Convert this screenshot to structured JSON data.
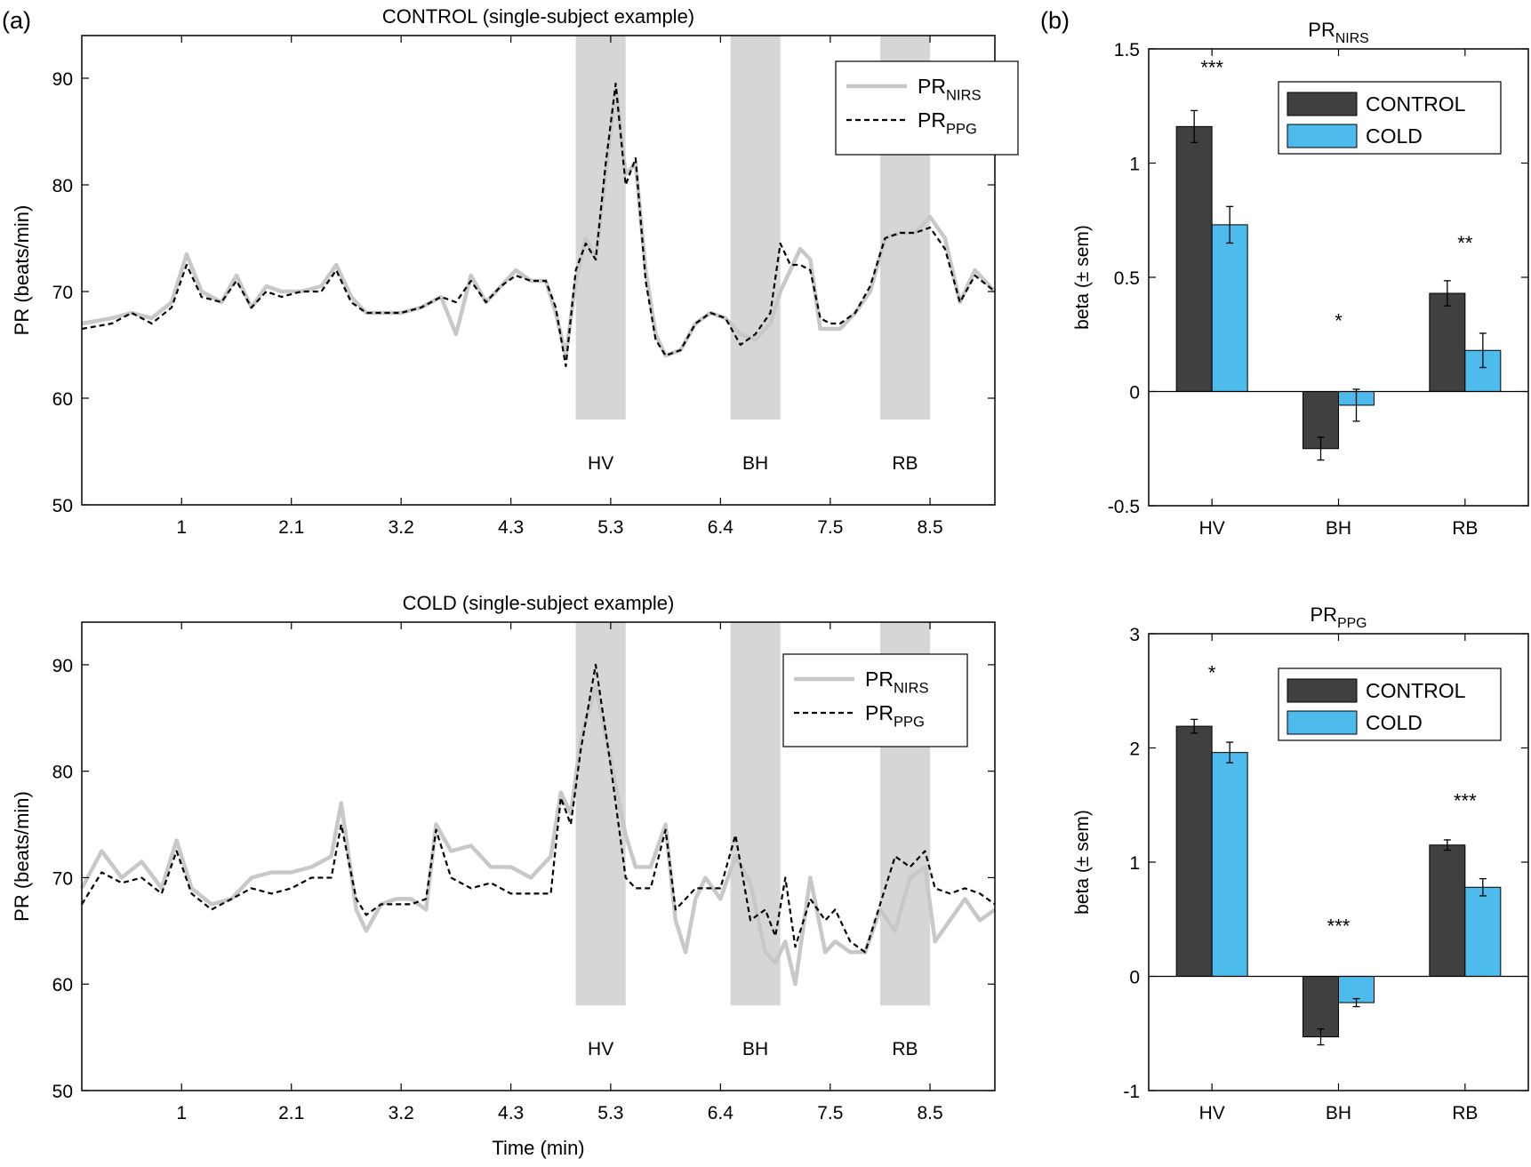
{
  "panel_labels": {
    "a": "(a)",
    "b": "(b)"
  },
  "colors": {
    "band": "#d6d6d6",
    "nirs": "#c8c8c8",
    "ppg": "#000000",
    "control_bar": "#404040",
    "cold_bar": "#4dbbeb"
  },
  "chart_data": [
    {
      "type": "line",
      "id": "control_ts",
      "title": "CONTROL (single-subject example)",
      "xlabel": "",
      "ylabel": "PR (beats/min)",
      "xlim": [
        0,
        9.15
      ],
      "ylim": [
        50,
        94
      ],
      "xticks": [
        1,
        2.1,
        3.2,
        4.3,
        5.3,
        6.4,
        7.5,
        8.5
      ],
      "xtick_labels": [
        "1",
        "2.1",
        "3.2",
        "4.3",
        "5.3",
        "6.4",
        "7.5",
        "8.5"
      ],
      "yticks": [
        50,
        60,
        70,
        80,
        90
      ],
      "ytick_labels": [
        "50",
        "60",
        "70",
        "80",
        "90"
      ],
      "bands": [
        {
          "label": "HV",
          "x": [
            4.95,
            5.45
          ]
        },
        {
          "label": "BH",
          "x": [
            6.5,
            7.0
          ]
        },
        {
          "label": "RB",
          "x": [
            8.0,
            8.5
          ]
        }
      ],
      "band_y": [
        58,
        94
      ],
      "band_label_y": 54,
      "legend_position": "top-right",
      "series": [
        {
          "name": "PR_NIRS",
          "name_main": "PR",
          "name_sub": "NIRS",
          "style": "solid",
          "x": [
            0,
            0.3,
            0.5,
            0.7,
            0.9,
            1.05,
            1.2,
            1.4,
            1.55,
            1.7,
            1.85,
            2.0,
            2.2,
            2.4,
            2.55,
            2.7,
            2.85,
            3.0,
            3.2,
            3.4,
            3.6,
            3.75,
            3.9,
            4.05,
            4.2,
            4.35,
            4.5,
            4.65,
            4.75,
            4.85,
            4.95,
            5.05,
            5.15,
            5.25,
            5.35,
            5.45,
            5.55,
            5.65,
            5.75,
            5.85,
            6.0,
            6.15,
            6.3,
            6.45,
            6.6,
            6.75,
            6.9,
            7.0,
            7.1,
            7.2,
            7.3,
            7.4,
            7.5,
            7.6,
            7.75,
            7.9,
            8.05,
            8.2,
            8.35,
            8.5,
            8.65,
            8.8,
            8.95,
            9.15
          ],
          "y": [
            67,
            67.5,
            68,
            67.5,
            69,
            73.5,
            70,
            69,
            71.5,
            68.5,
            70.5,
            70,
            70,
            70.5,
            72.5,
            69.5,
            68,
            68,
            68,
            68.5,
            69.5,
            66,
            71.5,
            69,
            70.5,
            72,
            71,
            71,
            68,
            64,
            71,
            75,
            73,
            81,
            89,
            81,
            82,
            72,
            66,
            64,
            64.5,
            67,
            68,
            67.5,
            66,
            65.5,
            67,
            70,
            72,
            74,
            73,
            66.5,
            66.5,
            66.5,
            68,
            70,
            75,
            75.5,
            75.5,
            77,
            75,
            69,
            72,
            70
          ]
        },
        {
          "name": "PR_PPG",
          "name_main": "PR",
          "name_sub": "PPG",
          "style": "dashed",
          "x": [
            0,
            0.3,
            0.5,
            0.7,
            0.9,
            1.05,
            1.2,
            1.4,
            1.55,
            1.7,
            1.85,
            2.0,
            2.2,
            2.4,
            2.55,
            2.7,
            2.85,
            3.0,
            3.2,
            3.4,
            3.6,
            3.75,
            3.9,
            4.05,
            4.2,
            4.35,
            4.5,
            4.65,
            4.75,
            4.85,
            4.95,
            5.05,
            5.15,
            5.25,
            5.35,
            5.45,
            5.55,
            5.65,
            5.75,
            5.85,
            6.0,
            6.15,
            6.3,
            6.45,
            6.6,
            6.75,
            6.9,
            7.0,
            7.1,
            7.2,
            7.3,
            7.4,
            7.5,
            7.6,
            7.75,
            7.9,
            8.05,
            8.2,
            8.35,
            8.5,
            8.65,
            8.8,
            8.95,
            9.15
          ],
          "y": [
            66.5,
            67,
            68,
            67,
            68.5,
            72.5,
            69.5,
            69,
            71,
            68.5,
            70,
            69.5,
            70,
            70,
            72,
            69,
            68,
            68,
            68,
            68.5,
            69.5,
            69,
            71,
            69,
            70.5,
            71.5,
            71,
            71,
            68.5,
            63,
            72,
            74.5,
            73,
            82,
            89.5,
            80,
            82.5,
            71,
            65.5,
            64,
            64.5,
            67,
            68,
            67.5,
            65,
            66,
            68,
            74.5,
            72.5,
            72.5,
            72,
            67.5,
            67,
            67,
            68,
            70.5,
            75,
            75.5,
            75.5,
            76,
            74,
            69,
            71.5,
            70
          ]
        }
      ]
    },
    {
      "type": "line",
      "id": "cold_ts",
      "title": "COLD (single-subject example)",
      "xlabel": "Time (min)",
      "ylabel": "PR (beats/min)",
      "xlim": [
        0,
        9.15
      ],
      "ylim": [
        50,
        94
      ],
      "xticks": [
        1,
        2.1,
        3.2,
        4.3,
        5.3,
        6.4,
        7.5,
        8.5
      ],
      "xtick_labels": [
        "1",
        "2.1",
        "3.2",
        "4.3",
        "5.3",
        "6.4",
        "7.5",
        "8.5"
      ],
      "yticks": [
        50,
        60,
        70,
        80,
        90
      ],
      "ytick_labels": [
        "50",
        "60",
        "70",
        "80",
        "90"
      ],
      "bands": [
        {
          "label": "HV",
          "x": [
            4.95,
            5.45
          ]
        },
        {
          "label": "BH",
          "x": [
            6.5,
            7.0
          ]
        },
        {
          "label": "RB",
          "x": [
            8.0,
            8.5
          ]
        }
      ],
      "band_y": [
        58,
        94
      ],
      "band_label_y": 54,
      "legend_position": "top-right",
      "series": [
        {
          "name": "PR_NIRS",
          "name_main": "PR",
          "name_sub": "NIRS",
          "style": "solid",
          "x": [
            0,
            0.2,
            0.4,
            0.6,
            0.8,
            0.95,
            1.1,
            1.3,
            1.5,
            1.7,
            1.9,
            2.1,
            2.3,
            2.5,
            2.6,
            2.75,
            2.85,
            3.0,
            3.15,
            3.3,
            3.45,
            3.55,
            3.7,
            3.9,
            4.1,
            4.3,
            4.5,
            4.7,
            4.8,
            4.9,
            5.0,
            5.15,
            5.3,
            5.45,
            5.55,
            5.7,
            5.85,
            5.95,
            6.05,
            6.15,
            6.25,
            6.4,
            6.55,
            6.7,
            6.85,
            6.95,
            7.05,
            7.15,
            7.3,
            7.45,
            7.55,
            7.7,
            7.85,
            8.0,
            8.15,
            8.3,
            8.45,
            8.55,
            8.7,
            8.85,
            9.0,
            9.15
          ],
          "y": [
            69,
            72.5,
            70,
            71.5,
            69,
            73.5,
            69,
            67.5,
            68,
            70,
            70.5,
            70.5,
            71,
            72,
            77,
            67,
            65,
            67.5,
            68,
            68,
            67,
            75,
            72.5,
            73,
            71,
            71,
            70,
            72,
            78,
            76,
            83,
            88,
            81,
            74,
            71,
            71,
            75,
            66,
            63,
            68,
            70,
            68,
            72,
            69.5,
            63,
            62,
            64,
            60,
            70,
            63,
            64,
            63,
            63,
            67,
            65,
            70,
            71,
            64,
            66,
            68,
            66,
            67
          ]
        },
        {
          "name": "PR_PPG",
          "name_main": "PR",
          "name_sub": "PPG",
          "style": "dashed",
          "x": [
            0,
            0.2,
            0.4,
            0.6,
            0.8,
            0.95,
            1.1,
            1.3,
            1.5,
            1.7,
            1.9,
            2.1,
            2.3,
            2.5,
            2.6,
            2.75,
            2.85,
            3.0,
            3.15,
            3.3,
            3.45,
            3.55,
            3.7,
            3.9,
            4.1,
            4.3,
            4.5,
            4.7,
            4.8,
            4.9,
            5.0,
            5.15,
            5.3,
            5.45,
            5.55,
            5.7,
            5.85,
            5.95,
            6.05,
            6.15,
            6.25,
            6.4,
            6.55,
            6.7,
            6.85,
            6.95,
            7.05,
            7.15,
            7.3,
            7.45,
            7.55,
            7.7,
            7.85,
            8.0,
            8.15,
            8.3,
            8.45,
            8.55,
            8.7,
            8.85,
            9.0,
            9.15
          ],
          "y": [
            67.5,
            70.5,
            69.5,
            70,
            68.5,
            72.5,
            68.5,
            67,
            68,
            69,
            68.5,
            69,
            70,
            70,
            75,
            68,
            66.5,
            67.5,
            67.5,
            67.5,
            68,
            74.5,
            70,
            69,
            69.5,
            68.5,
            68.5,
            68.5,
            77.5,
            75,
            82,
            90,
            80.5,
            70,
            69,
            69,
            74.5,
            67,
            68,
            69,
            69,
            69,
            74,
            66,
            67,
            64.5,
            70,
            63.5,
            68,
            66,
            67,
            64,
            63,
            67.5,
            72,
            71,
            72.5,
            69,
            68.5,
            69,
            68.5,
            67.5
          ]
        }
      ]
    },
    {
      "type": "bar",
      "id": "beta_nirs",
      "title_main": "PR",
      "title_sub": "NIRS",
      "xlabel": "",
      "ylabel": "beta (± sem)",
      "categories": [
        "HV",
        "BH",
        "RB"
      ],
      "ylim": [
        -0.5,
        1.5
      ],
      "yticks": [
        -0.5,
        0,
        0.5,
        1,
        1.5
      ],
      "ytick_labels": [
        "-0.5",
        "0",
        "0.5",
        "1",
        "1.5"
      ],
      "legend_position": "top-right",
      "series": [
        {
          "name": "CONTROL",
          "values": [
            1.16,
            -0.25,
            0.43
          ],
          "sem": [
            0.07,
            0.05,
            0.055
          ]
        },
        {
          "name": "COLD",
          "values": [
            0.73,
            -0.06,
            0.18
          ],
          "sem": [
            0.08,
            0.07,
            0.075
          ]
        }
      ],
      "significance": [
        "***",
        "*",
        "**"
      ],
      "significance_y": [
        1.39,
        0.28,
        0.62
      ]
    },
    {
      "type": "bar",
      "id": "beta_ppg",
      "title_main": "PR",
      "title_sub": "PPG",
      "xlabel": "",
      "ylabel": "beta (± sem)",
      "categories": [
        "HV",
        "BH",
        "RB"
      ],
      "ylim": [
        -1,
        3
      ],
      "yticks": [
        -1,
        0,
        1,
        2,
        3
      ],
      "ytick_labels": [
        "-1",
        "0",
        "1",
        "2",
        "3"
      ],
      "legend_position": "top-right",
      "series": [
        {
          "name": "CONTROL",
          "values": [
            2.19,
            -0.53,
            1.15
          ],
          "sem": [
            0.06,
            0.07,
            0.045
          ]
        },
        {
          "name": "COLD",
          "values": [
            1.96,
            -0.23,
            0.78
          ],
          "sem": [
            0.09,
            0.035,
            0.075
          ]
        }
      ],
      "significance": [
        "*",
        "***",
        "***"
      ],
      "significance_y": [
        2.6,
        0.38,
        1.48
      ]
    }
  ]
}
